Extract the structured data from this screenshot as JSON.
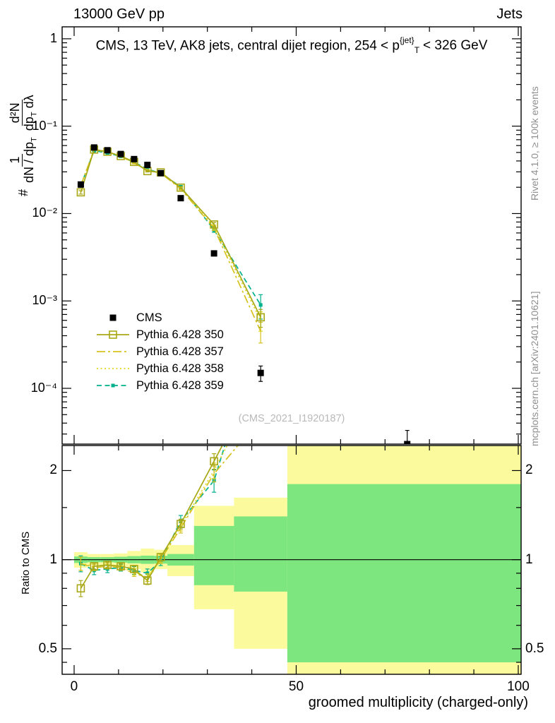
{
  "header": {
    "top_left": "13000 GeV pp",
    "top_right": "Jets"
  },
  "side_notes": {
    "right_top": "Rivet 4.1.0, ≥ 100k events",
    "right_bottom": "mcplots.cern.ch [arXiv:2401.10621]"
  },
  "watermark": "(CMS_2021_I1920187)",
  "chart_data": {
    "type": "line",
    "title_parts": {
      "pre": "CMS, 13 TeV, AK8 jets, central dijet region, 254 < p",
      "sup": "{jet}",
      "sub": "T",
      "post": "< 326 GeV"
    },
    "ylabel_parts": {
      "prefix": "#",
      "frac1_num": "1",
      "frac1_den_main": "dN / dp",
      "frac1_den_sub": "T",
      "frac2_num": "d²N",
      "frac2_den_main": "dp",
      "frac2_den_sub": "T",
      "frac2_den_tail": " dλ"
    },
    "x": {
      "label": "groomed multiplicity (charged-only)",
      "min": -2.7,
      "max": 100.64,
      "tick_labels": [
        {
          "v": 0,
          "label": "0"
        },
        {
          "v": 50,
          "label": "50"
        },
        {
          "v": 100,
          "label": "100"
        }
      ],
      "minor_step": 10
    },
    "main": {
      "ylog": true,
      "ymin": 2.3e-05,
      "ymax": 1.37,
      "tick_labels": [
        {
          "v": 1,
          "label": "1"
        },
        {
          "v": 0.1,
          "label": "10⁻¹"
        },
        {
          "v": 0.01,
          "label": "10⁻²"
        },
        {
          "v": 0.001,
          "label": "10⁻³"
        },
        {
          "v": 0.0001,
          "label": "10⁻⁴"
        }
      ]
    },
    "ratio": {
      "label": "Ratio to CMS",
      "ylog": true,
      "ymin": 0.41,
      "ymax": 2.43,
      "tick_labels": [
        {
          "v": 2,
          "label": "2"
        },
        {
          "v": 1,
          "label": "1"
        },
        {
          "v": 0.5,
          "label": "0.5"
        }
      ],
      "band_colors": {
        "yellow": "#fbfb9e",
        "green": "#7ee67e"
      },
      "bands_yellow": [
        [
          0,
          3,
          0.94,
          1.06
        ],
        [
          3,
          6,
          0.96,
          1.045
        ],
        [
          6,
          9,
          0.955,
          1.045
        ],
        [
          9,
          12,
          0.95,
          1.05
        ],
        [
          12,
          15,
          0.93,
          1.07
        ],
        [
          15,
          18,
          0.905,
          1.09
        ],
        [
          18,
          21,
          0.93,
          1.08
        ],
        [
          21,
          27,
          0.88,
          1.12
        ],
        [
          27,
          36,
          0.68,
          1.52
        ],
        [
          36,
          48,
          0.5,
          1.62
        ],
        [
          48,
          100.64,
          0.41,
          2.43
        ]
      ],
      "bands_green": [
        [
          0,
          3,
          0.975,
          1.025
        ],
        [
          3,
          6,
          0.98,
          1.02
        ],
        [
          6,
          9,
          0.98,
          1.02
        ],
        [
          9,
          12,
          0.977,
          1.023
        ],
        [
          12,
          15,
          0.972,
          1.028
        ],
        [
          15,
          18,
          0.968,
          1.032
        ],
        [
          18,
          21,
          0.97,
          1.03
        ],
        [
          21,
          27,
          0.955,
          1.045
        ],
        [
          27,
          36,
          0.82,
          1.3
        ],
        [
          36,
          48,
          0.78,
          1.4
        ],
        [
          48,
          100.64,
          0.45,
          1.8
        ]
      ]
    },
    "bin_centers": [
      1.5,
      4.5,
      7.5,
      10.5,
      13.5,
      16.5,
      19.5,
      24,
      31.5,
      42,
      75
    ],
    "series": [
      {
        "name": "CMS",
        "color": "#000000",
        "line": "none",
        "marker": "square-filled",
        "values": [
          0.0215,
          0.057,
          0.053,
          0.048,
          0.042,
          0.036,
          0.029,
          0.015,
          0.0035,
          0.00015,
          2.3e-05
        ],
        "yerr": [
          0.0015,
          0.0012,
          0.001,
          0.0009,
          0.0008,
          0.0008,
          0.0007,
          0.0004,
          0.00015,
          3e-05,
          1e-05
        ],
        "ratio": null,
        "ratio_err": null
      },
      {
        "name": "Pythia 6.428 350",
        "color": "#a8a817",
        "line": "solid",
        "marker": "square-open",
        "values": [
          0.0175,
          0.054,
          0.051,
          0.0455,
          0.039,
          0.0306,
          0.0296,
          0.0198,
          0.0075,
          0.00065,
          null
        ],
        "yerr": [
          0.0008,
          0.0009,
          0.0009,
          0.0008,
          0.0008,
          0.0007,
          0.0007,
          0.0006,
          0.0004,
          0.00015,
          null
        ],
        "ratio": [
          0.8,
          0.95,
          0.96,
          0.95,
          0.93,
          0.85,
          1.02,
          1.32,
          2.15,
          4.3
        ],
        "ratio_err": [
          0.05,
          0.022,
          0.02,
          0.02,
          0.022,
          0.026,
          0.03,
          0.05,
          0.13,
          0.6
        ]
      },
      {
        "name": "Pythia 6.428 357",
        "color": "#d6c21f",
        "line": "dashdot",
        "marker": "none",
        "values": [
          0.0209,
          0.0536,
          0.0504,
          0.0451,
          0.0378,
          0.0313,
          0.029,
          0.0192,
          0.0068,
          0.00045,
          null
        ],
        "yerr": [
          0.0008,
          0.0009,
          0.0009,
          0.0008,
          0.0008,
          0.0007,
          0.0007,
          0.0006,
          0.0004,
          0.00012,
          null
        ],
        "ratio": [
          0.97,
          0.94,
          0.95,
          0.94,
          0.9,
          0.87,
          1.0,
          1.28,
          1.95,
          3.0
        ],
        "ratio_err": [
          0.05,
          0.022,
          0.02,
          0.02,
          0.022,
          0.026,
          0.03,
          0.05,
          0.12,
          0.5
        ]
      },
      {
        "name": "Pythia 6.428 358",
        "color": "#dfd71e",
        "line": "dotted",
        "marker": "none",
        "values": [
          0.0209,
          0.0542,
          0.0509,
          0.0451,
          0.0382,
          0.0313,
          0.0293,
          0.0195,
          0.007,
          0.0006,
          null
        ],
        "yerr": [
          0.0008,
          0.0009,
          0.0009,
          0.0008,
          0.0008,
          0.0007,
          0.0007,
          0.0006,
          0.0004,
          0.00015,
          null
        ],
        "ratio": [
          0.97,
          0.95,
          0.96,
          0.94,
          0.91,
          0.87,
          1.01,
          1.3,
          2.0,
          4.0
        ],
        "ratio_err": [
          0.05,
          0.022,
          0.02,
          0.02,
          0.022,
          0.026,
          0.03,
          0.05,
          0.12,
          0.5
        ]
      },
      {
        "name": "Pythia 6.428 359",
        "color": "#00b08c",
        "line": "dashed",
        "marker": "square-filled-small",
        "values": [
          0.0209,
          0.0524,
          0.0493,
          0.0451,
          0.0386,
          0.0324,
          0.0287,
          0.0203,
          0.0065,
          0.0009,
          null
        ],
        "yerr": [
          0.0009,
          0.001,
          0.0009,
          0.0008,
          0.0008,
          0.0008,
          0.0007,
          0.0006,
          0.0004,
          0.00028,
          null
        ],
        "ratio": [
          0.97,
          0.92,
          0.93,
          0.94,
          0.92,
          0.9,
          0.99,
          1.35,
          1.85,
          6.0
        ],
        "ratio_err": [
          0.06,
          0.03,
          0.026,
          0.025,
          0.028,
          0.03,
          0.035,
          0.06,
          0.16,
          0.8
        ]
      }
    ]
  }
}
